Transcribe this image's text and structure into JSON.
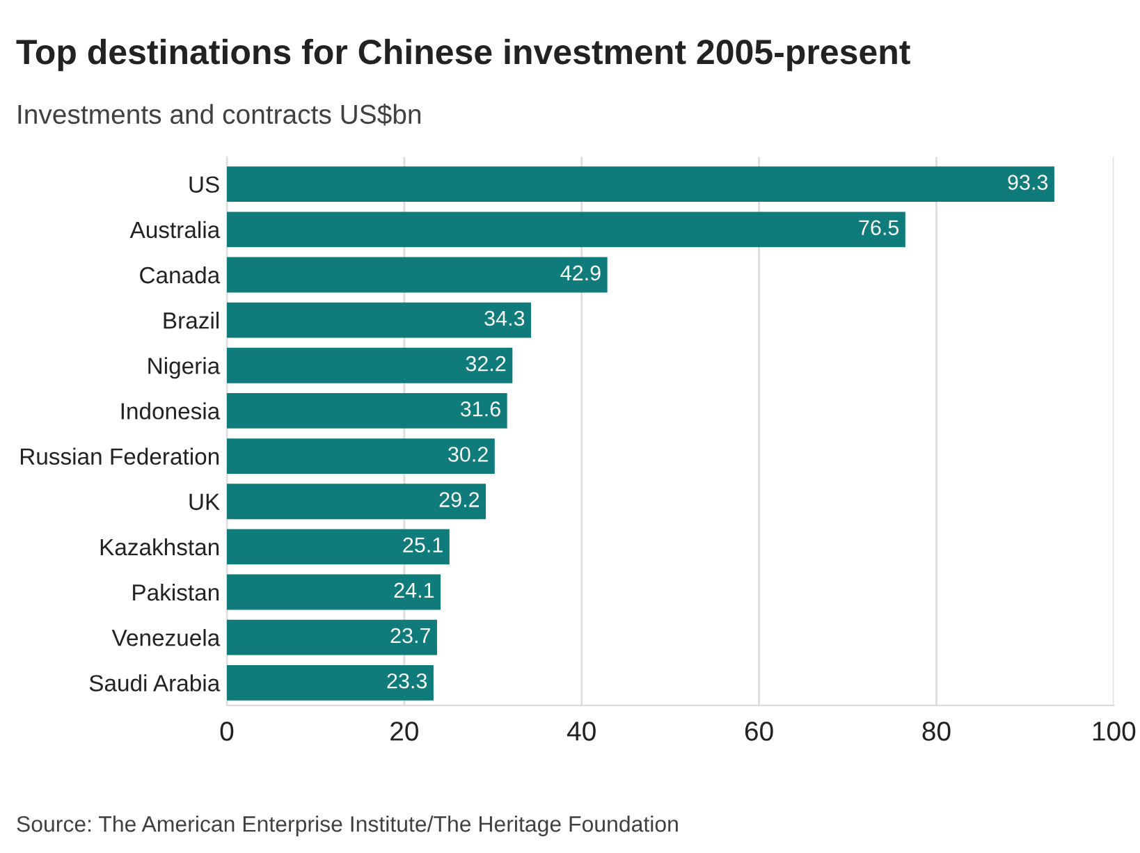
{
  "chart_data": {
    "type": "bar",
    "orientation": "horizontal",
    "title": "Top destinations for Chinese investment 2005-present",
    "subtitle": "Investments and contracts US$bn",
    "categories": [
      "US",
      "Australia",
      "Canada",
      "Brazil",
      "Nigeria",
      "Indonesia",
      "Russian Federation",
      "UK",
      "Kazakhstan",
      "Pakistan",
      "Venezuela",
      "Saudi Arabia"
    ],
    "values": [
      93.3,
      76.5,
      42.9,
      34.3,
      32.2,
      31.6,
      30.2,
      29.2,
      25.1,
      24.1,
      23.7,
      23.3
    ],
    "color": "#0f7c7b",
    "data_labels": true,
    "xlim": [
      0,
      100
    ],
    "xticks": [
      0,
      20,
      40,
      60,
      80,
      100
    ],
    "grid": "x",
    "legend": false,
    "annotations": [
      "Source: The American Enterprise Institute/The Heritage Foundation"
    ]
  }
}
